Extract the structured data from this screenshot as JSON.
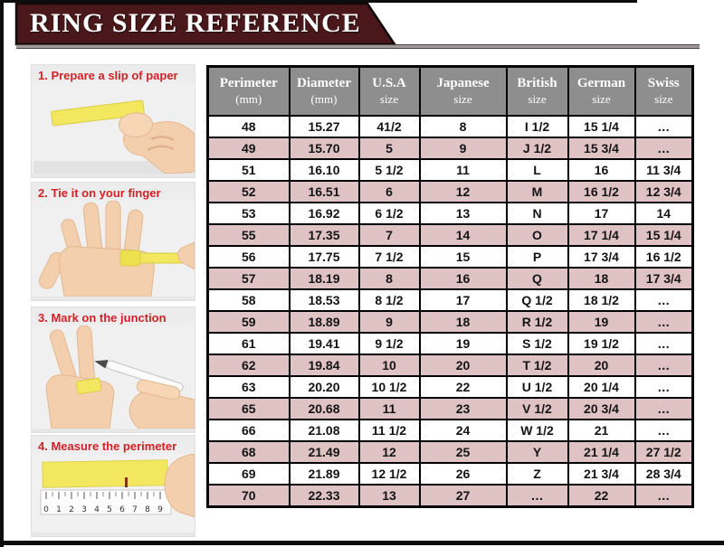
{
  "banner": {
    "title": "RING SIZE REFERENCE"
  },
  "steps": [
    {
      "label": "1. Prepare a slip of paper"
    },
    {
      "label": "2. Tie it on your finger"
    },
    {
      "label": "3. Mark on the junction"
    },
    {
      "label": "4. Measure the perimeter"
    }
  ],
  "ruler": {
    "numbers": [
      "0",
      "1",
      "2",
      "3",
      "4",
      "5",
      "6",
      "7",
      "8",
      "9"
    ]
  },
  "table": {
    "headers": [
      {
        "line1": "Perimeter",
        "line2": "(mm)"
      },
      {
        "line1": "Diameter",
        "line2": "(mm)"
      },
      {
        "line1": "U.S.A",
        "line2": "size"
      },
      {
        "line1": "Japanese",
        "line2": "size"
      },
      {
        "line1": "British",
        "line2": "size"
      },
      {
        "line1": "German",
        "line2": "size"
      },
      {
        "line1": "Swiss",
        "line2": "size"
      }
    ]
  },
  "chart_data": {
    "type": "table",
    "title": "RING SIZE REFERENCE",
    "columns": [
      "Perimeter (mm)",
      "Diameter (mm)",
      "U.S.A size",
      "Japanese size",
      "British size",
      "German size",
      "Swiss size"
    ],
    "rows": [
      [
        "48",
        "15.27",
        "41/2",
        "8",
        "I 1/2",
        "15 1/4",
        "…"
      ],
      [
        "49",
        "15.70",
        "5",
        "9",
        "J 1/2",
        "15 3/4",
        "…"
      ],
      [
        "51",
        "16.10",
        "5 1/2",
        "11",
        "L",
        "16",
        "11 3/4"
      ],
      [
        "52",
        "16.51",
        "6",
        "12",
        "M",
        "16 1/2",
        "12 3/4"
      ],
      [
        "53",
        "16.92",
        "6 1/2",
        "13",
        "N",
        "17",
        "14"
      ],
      [
        "55",
        "17.35",
        "7",
        "14",
        "O",
        "17 1/4",
        "15 1/4"
      ],
      [
        "56",
        "17.75",
        "7 1/2",
        "15",
        "P",
        "17 3/4",
        "16 1/2"
      ],
      [
        "57",
        "18.19",
        "8",
        "16",
        "Q",
        "18",
        "17 3/4"
      ],
      [
        "58",
        "18.53",
        "8 1/2",
        "17",
        "Q 1/2",
        "18 1/2",
        "…"
      ],
      [
        "59",
        "18.89",
        "9",
        "18",
        "R 1/2",
        "19",
        "…"
      ],
      [
        "61",
        "19.41",
        "9 1/2",
        "19",
        "S 1/2",
        "19 1/2",
        "…"
      ],
      [
        "62",
        "19.84",
        "10",
        "20",
        "T 1/2",
        "20",
        "…"
      ],
      [
        "63",
        "20.20",
        "10 1/2",
        "22",
        "U 1/2",
        "20 1/4",
        "…"
      ],
      [
        "65",
        "20.68",
        "11",
        "23",
        "V 1/2",
        "20 3/4",
        "…"
      ],
      [
        "66",
        "21.08",
        "11 1/2",
        "24",
        "W 1/2",
        "21",
        "…"
      ],
      [
        "68",
        "21.49",
        "12",
        "25",
        "Y",
        "21 1/4",
        "27 1/2"
      ],
      [
        "69",
        "21.89",
        "12 1/2",
        "26",
        "Z",
        "21 3/4",
        "28 3/4"
      ],
      [
        "70",
        "22.33",
        "13",
        "27",
        "…",
        "22",
        "…"
      ]
    ],
    "striping": "alternating white and pink rows",
    "colors": {
      "banner_maroon": "#4a181b",
      "header_gray": "#8e8e8e",
      "row_pink": "#dfc2c4",
      "step_text_red": "#d42127",
      "paper_yellow": "#f2e75e",
      "border_black": "#000000"
    }
  }
}
